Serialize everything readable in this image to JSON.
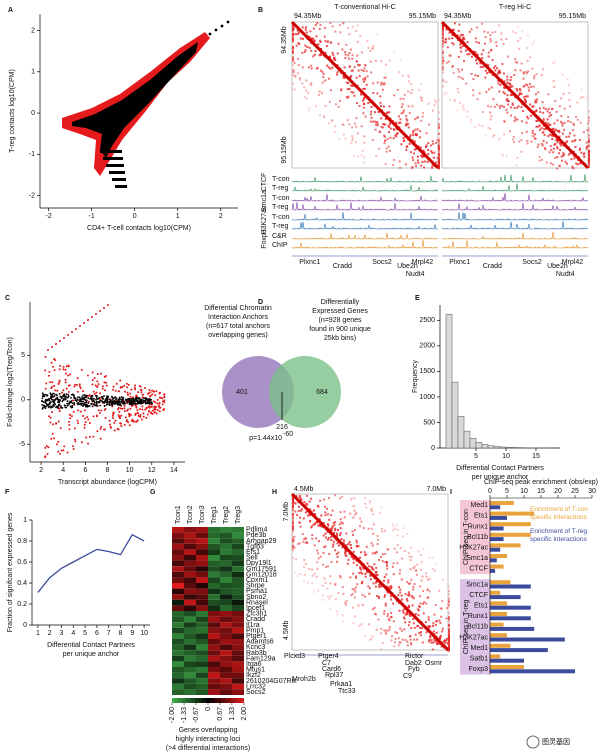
{
  "panel_letters": [
    "A",
    "B",
    "C",
    "D",
    "E",
    "F",
    "G",
    "H",
    "I"
  ],
  "chart_data": [
    {
      "type": "scatter",
      "xlabel": "CD4+ T-cell contacts log10(CPM)",
      "ylabel": "T-reg contacts log10(CPM)",
      "xlim": [
        -2.2,
        2.4
      ],
      "ylim": [
        -2.3,
        2.4
      ],
      "xticks": [
        -2,
        -1,
        0,
        1,
        2
      ],
      "yticks": [
        -2,
        -1,
        0,
        1,
        2
      ]
    },
    {
      "type": "scatter",
      "xlabel": "Transcript abundance (logCPM)",
      "ylabel": "Fold-change log2(Treg/Tcon)",
      "xlim": [
        1,
        15
      ],
      "ylim": [
        -7,
        11
      ],
      "xticks": [
        2,
        4,
        6,
        8,
        10,
        12,
        14
      ],
      "yticks": [
        -5,
        0,
        5
      ]
    },
    {
      "type": "histogram",
      "xlabel": [
        "Differential Contact Partners",
        "per unique anchor"
      ],
      "ylabel": "Frequency",
      "bins": [
        0,
        1,
        2,
        3,
        4,
        5,
        6,
        7,
        8,
        9,
        10,
        11,
        12,
        13,
        14,
        15,
        16,
        17
      ],
      "values": [
        2620,
        1290,
        620,
        330,
        190,
        110,
        70,
        45,
        30,
        20,
        14,
        10,
        7,
        5,
        3,
        2,
        1
      ],
      "color": "#d9d9d9",
      "xlim": [
        -1,
        19
      ],
      "ylim": [
        0,
        2800
      ],
      "xticks": [
        5,
        10,
        15
      ],
      "yticks": [
        0,
        500,
        1000,
        1500,
        2000,
        2500
      ]
    },
    {
      "type": "line",
      "xlabel": [
        "Differential Contact Partners",
        "per unique anchor"
      ],
      "ylabel": "Fraction of signifcant expressed genes",
      "x": [
        1,
        2,
        3,
        4,
        5,
        6,
        7,
        8,
        9,
        10
      ],
      "values": [
        0.31,
        0.45,
        0.54,
        0.6,
        0.66,
        0.72,
        0.7,
        0.67,
        0.86,
        0.8
      ],
      "color": "#3b4a9a",
      "xlim": [
        0.5,
        10.5
      ],
      "ylim": [
        0,
        1
      ],
      "xticks": [
        1,
        2,
        3,
        4,
        5,
        6,
        7,
        8,
        9,
        10
      ],
      "yticks": [
        0,
        0.2,
        0.4,
        0.6,
        0.8,
        1
      ]
    },
    {
      "type": "hbar",
      "title": "ChIP-seq peak enrichment (obs/exp)",
      "groups": [
        {
          "label": "ChIP-seq in T-con",
          "color": "#f4c6d7",
          "categories": [
            "Med1",
            "Ets1",
            "Runx1",
            "Bcl11b",
            "H3K27ac",
            "Smc1a",
            "CTCF"
          ]
        },
        {
          "label": "ChIP-seq in T-reg",
          "color": "#dcc3e6",
          "categories": [
            "Smc1a",
            "CTCF",
            "Ets1",
            "Runx1",
            "Bcl11b",
            "H3K27ac",
            "Med1",
            "Satb1",
            "Foxp3"
          ]
        }
      ],
      "series": [
        {
          "name": "Enrichment of T-con specific interactions",
          "color": "#e8a33d",
          "values": [
            7,
            13,
            12,
            12,
            9,
            5,
            4,
            6,
            3,
            5,
            5,
            4,
            5,
            6,
            3,
            10
          ]
        },
        {
          "name": "Enrichment of T-reg specific interactions",
          "color": "#3c4a9c",
          "values": [
            3,
            5,
            4,
            4,
            3,
            2,
            1.5,
            12,
            9,
            12,
            12,
            13,
            22,
            17,
            10,
            25
          ]
        }
      ],
      "xlim": [
        0,
        30
      ],
      "xticks": [
        0,
        5,
        10,
        15,
        20,
        25,
        30
      ]
    }
  ],
  "hic_b": {
    "titles": [
      "T-conventional Hi-C",
      "T-reg Hi-C"
    ],
    "coords": [
      "94.35Mb",
      "95.15Mb"
    ],
    "tracks": [
      {
        "group": "CTCF",
        "rows": [
          "T-con",
          "T-reg"
        ],
        "color": "#2e8b57"
      },
      {
        "group": "Smc1a",
        "rows": [
          "T-con",
          "T-reg"
        ],
        "color": "#7b3fa0"
      },
      {
        "group": "H3K27ac",
        "rows": [
          "T-con",
          "T-reg"
        ],
        "color": "#2a6fb0"
      },
      {
        "group": "Foxp3",
        "rows": [
          "C&R",
          "ChIP"
        ],
        "color": "#e08a1e"
      }
    ],
    "genes": [
      "Plxnc1",
      "Cradd",
      "Socs2",
      "Ube2n",
      "Mrpl42",
      "Nudt4"
    ]
  },
  "hic_h": {
    "coords": [
      "4.5Mb",
      "7.0Mb"
    ],
    "genes": [
      "Plcxd3",
      "Ptger4",
      "C7",
      "Card6",
      "Rpl37",
      "Mroh2b",
      "Prkaa1",
      "Ttc33",
      "Rictor",
      "Dab2",
      "Osmr",
      "Fyb",
      "C9"
    ]
  },
  "venn": {
    "left_lines": [
      "Differential Chromatin",
      "Interaction Anchors",
      "(n=617 total anchors",
      "overlapping genes)"
    ],
    "right_lines": [
      "Differentially",
      "Expressed Genes",
      "(n=928 genes",
      "found in 900 unique",
      "25kb bins)"
    ],
    "left_only": 401,
    "right_only": 684,
    "overlap": 216,
    "pvalue": "p=1.44x10",
    "pvalue_exp": "-60",
    "left_color": "#9b7fc0",
    "right_color": "#7cc08a"
  },
  "heatmap": {
    "columns": [
      "Tcon1",
      "Tcon2",
      "Tcon3",
      "Treg1",
      "Treg2",
      "Treg3"
    ],
    "rows": [
      "Pdlim4",
      "Pde3b",
      "Arhgap29",
      "Tgfb3",
      "Efs1",
      "Sell",
      "Dpy19l1",
      "Gm17591",
      "Gm12018",
      "Cpxm1",
      "Snrpe",
      "Psma1",
      "Sbno2",
      "Rnasel",
      "Ipcef1",
      "Zfc3h1",
      "Cradd",
      "Il1ra",
      "Pmp1",
      "Ptger1",
      "Adamts6",
      "Kcnc3",
      "Rab3b",
      "Fam129a",
      "Itga6",
      "Mtus1",
      "Ikzf2",
      "2610204G07Rik",
      "Lrrc32",
      "Socs2"
    ],
    "values": [
      [
        1.6,
        1.2,
        1.4,
        -1.3,
        -1.5,
        -1.4
      ],
      [
        1.1,
        1.5,
        0.9,
        -1.2,
        -1.0,
        -1.6
      ],
      [
        0.8,
        1.3,
        1.6,
        -1.5,
        -0.9,
        -1.1
      ],
      [
        1.4,
        0.7,
        1.2,
        -1.0,
        -1.3,
        -0.8
      ],
      [
        0.9,
        1.6,
        0.6,
        -0.7,
        -1.4,
        -1.2
      ],
      [
        1.2,
        0.5,
        1.5,
        -1.6,
        -0.8,
        -0.9
      ],
      [
        0.6,
        1.1,
        1.3,
        -1.1,
        -1.2,
        -0.7
      ],
      [
        1.5,
        0.9,
        0.4,
        -0.9,
        -0.6,
        -1.3
      ],
      [
        0.7,
        1.4,
        1.0,
        -1.4,
        -1.1,
        -0.5
      ],
      [
        1.0,
        0.6,
        1.7,
        -0.8,
        -1.5,
        -1.0
      ],
      [
        2.0,
        0.8,
        0.3,
        -1.2,
        -0.9,
        -1.0
      ],
      [
        0.4,
        1.2,
        1.1,
        -0.6,
        -1.0,
        -1.1
      ],
      [
        1.3,
        0.5,
        0.8,
        -1.3,
        -0.4,
        -0.9
      ],
      [
        -0.3,
        1.7,
        0.6,
        -0.9,
        -0.8,
        -0.3
      ],
      [
        0.9,
        0.4,
        1.2,
        -0.5,
        -1.2,
        -0.8
      ],
      [
        -1.2,
        -0.9,
        -1.4,
        1.1,
        1.3,
        1.0
      ],
      [
        -1.0,
        -1.5,
        -0.8,
        1.4,
        0.9,
        1.2
      ],
      [
        -1.4,
        -0.7,
        -1.1,
        0.8,
        1.5,
        1.1
      ],
      [
        -0.8,
        -1.2,
        -1.3,
        1.2,
        1.0,
        1.6
      ],
      [
        -1.5,
        -1.0,
        -0.6,
        1.6,
        1.1,
        0.7
      ],
      [
        -0.9,
        -1.3,
        -1.0,
        0.9,
        1.4,
        1.3
      ],
      [
        -1.1,
        -0.6,
        -1.5,
        1.3,
        0.7,
        1.2
      ],
      [
        -1.3,
        -1.1,
        -0.9,
        1.0,
        1.6,
        0.9
      ],
      [
        -0.7,
        -1.4,
        -1.2,
        1.5,
        1.2,
        0.8
      ],
      [
        -1.6,
        -0.8,
        -0.7,
        0.7,
        1.3,
        1.5
      ],
      [
        -1.0,
        -1.2,
        -1.4,
        1.1,
        0.8,
        1.4
      ],
      [
        -1.2,
        -1.6,
        -0.8,
        1.7,
        1.0,
        1.0
      ],
      [
        -0.6,
        -1.0,
        -1.3,
        1.2,
        1.5,
        0.6
      ],
      [
        -1.4,
        -0.9,
        -1.1,
        0.9,
        1.1,
        1.7
      ],
      [
        -1.1,
        -1.3,
        -1.0,
        1.4,
        0.9,
        1.2
      ]
    ],
    "scale_ticks": [
      {
        "value": -2,
        "label": "-2.00"
      },
      {
        "value": -1.33,
        "label": "-1.33"
      },
      {
        "value": -0.67,
        "label": "-0.67"
      },
      {
        "value": 0,
        "label": "0"
      },
      {
        "value": 0.67,
        "label": "0.67"
      },
      {
        "value": 1.33,
        "label": "1.33"
      },
      {
        "value": 2,
        "label": "2.00"
      }
    ],
    "caption": [
      "Genes overlapping",
      "highly interacting loci",
      "(>4 differential interactions)"
    ]
  },
  "watermark": "图灵基因"
}
